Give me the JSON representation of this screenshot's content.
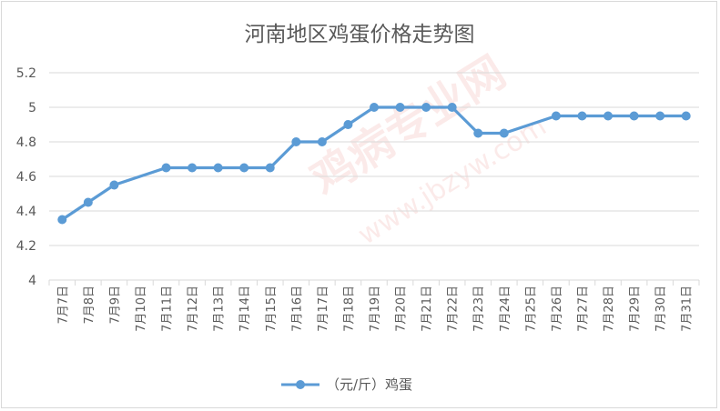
{
  "chart_data": {
    "type": "line",
    "title": "河南地区鸡蛋价格走势图",
    "xlabel": "",
    "ylabel": "",
    "ylim": [
      4,
      5.2
    ],
    "yticks": [
      "4",
      "4.2",
      "4.4",
      "4.6",
      "4.8",
      "5",
      "5.2"
    ],
    "grid": "horizontal",
    "legend_position": "bottom",
    "categories": [
      "7月7日",
      "7月8日",
      "7月9日",
      "7月10日",
      "7月11日",
      "7月12日",
      "7月13日",
      "7月14日",
      "7月15日",
      "7月16日",
      "7月17日",
      "7月18日",
      "7月19日",
      "7月20日",
      "7月21日",
      "7月22日",
      "7月23日",
      "7月24日",
      "7月25日",
      "7月26日",
      "7月27日",
      "7月28日",
      "7月29日",
      "7月30日",
      "7月31日"
    ],
    "series": [
      {
        "name": "（元/斤）鸡蛋",
        "color": "#5b9bd5",
        "values": [
          4.35,
          4.45,
          4.55,
          null,
          4.65,
          4.65,
          4.65,
          4.65,
          4.65,
          4.8,
          4.8,
          4.9,
          5.0,
          5.0,
          5.0,
          5.0,
          4.85,
          4.85,
          null,
          4.95,
          4.95,
          4.95,
          4.95,
          4.95,
          4.95
        ]
      }
    ],
    "watermark": {
      "text_main": "鸡病专业网",
      "text_url": "www.jbzyw.com"
    }
  }
}
